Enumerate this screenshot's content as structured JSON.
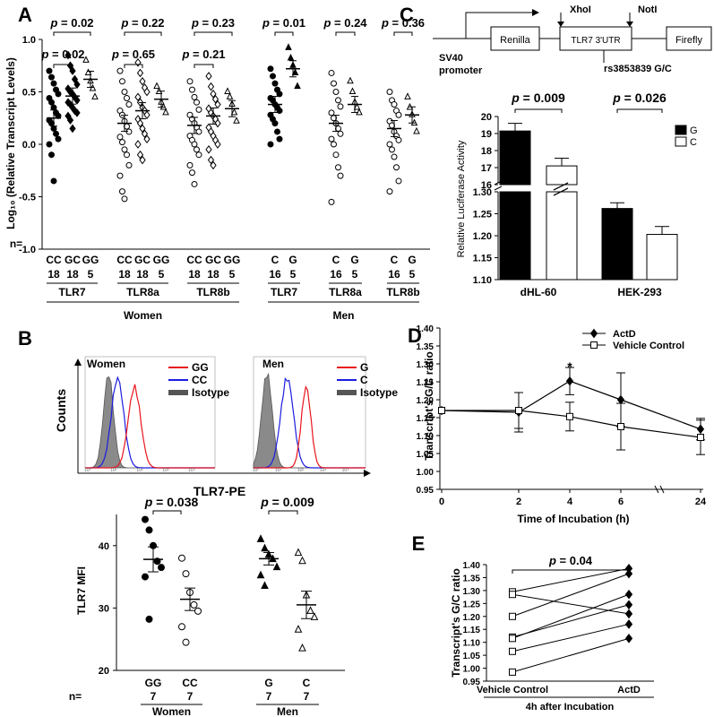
{
  "chart_data": [
    {
      "panel": "A",
      "type": "scatter",
      "ylabel": "Log₁₀ (Relative Transcript Levels)",
      "ylim": [
        -1.0,
        1.0
      ],
      "yticks": [
        "1.0",
        "0.5",
        "0.0",
        "-0.5",
        "-1.0"
      ],
      "n_label": "n=",
      "groups": [
        {
          "sex": "Women",
          "genes": [
            {
              "name": "TLR7",
              "cats": [
                "CC",
                "GC",
                "GG"
              ],
              "n": [
                "18",
                "18",
                "5"
              ],
              "means": [
                0.25,
                0.46,
                0.62
              ],
              "points": [
                [
                  0.7,
                  0.64,
                  0.58,
                  0.52,
                  0.48,
                  0.44,
                  0.4,
                  0.35,
                  0.3,
                  0.27,
                  0.23,
                  0.2,
                  0.15,
                  0.1,
                  0.05,
                  0.0,
                  -0.1,
                  -0.35
                ],
                [
                  0.85,
                  0.75,
                  0.7,
                  0.62,
                  0.57,
                  0.53,
                  0.5,
                  0.48,
                  0.45,
                  0.42,
                  0.4,
                  0.38,
                  0.35,
                  0.32,
                  0.3,
                  0.27,
                  0.23,
                  0.15
                ],
                [
                  0.8,
                  0.68,
                  0.6,
                  0.53,
                  0.45
                ]
              ]
            },
            {
              "name": "TLR8a",
              "cats": [
                "CC",
                "GC",
                "GG"
              ],
              "n": [
                "18",
                "18",
                "5"
              ],
              "means": [
                0.2,
                0.32,
                0.43
              ],
              "points": [
                [
                  0.7,
                  0.6,
                  0.5,
                  0.44,
                  0.38,
                  0.32,
                  0.28,
                  0.22,
                  0.17,
                  0.12,
                  0.07,
                  0.02,
                  -0.05,
                  -0.1,
                  -0.2,
                  -0.3,
                  -0.45,
                  -0.52
                ],
                [
                  0.78,
                  0.68,
                  0.6,
                  0.54,
                  0.5,
                  0.45,
                  0.4,
                  0.35,
                  0.32,
                  0.28,
                  0.24,
                  0.2,
                  0.15,
                  0.1,
                  0.05,
                  0.0,
                  -0.1,
                  -0.15
                ],
                [
                  0.55,
                  0.5,
                  0.4,
                  0.35,
                  0.3
                ]
              ]
            },
            {
              "name": "TLR8b",
              "cats": [
                "CC",
                "GC",
                "GG"
              ],
              "n": [
                "18",
                "18",
                "5"
              ],
              "means": [
                0.18,
                0.27,
                0.34
              ],
              "points": [
                [
                  0.6,
                  0.52,
                  0.45,
                  0.4,
                  0.33,
                  0.28,
                  0.24,
                  0.2,
                  0.16,
                  0.12,
                  0.08,
                  0.04,
                  0.0,
                  -0.05,
                  -0.1,
                  -0.2,
                  -0.27,
                  -0.38
                ],
                [
                  0.65,
                  0.55,
                  0.48,
                  0.43,
                  0.38,
                  0.34,
                  0.3,
                  0.27,
                  0.24,
                  0.2,
                  0.16,
                  0.12,
                  0.08,
                  0.04,
                  0.0,
                  -0.05,
                  -0.15,
                  -0.2
                ],
                [
                  0.5,
                  0.45,
                  0.38,
                  0.3,
                  0.22
                ]
              ]
            }
          ],
          "pvalues": [
            {
              "text": "p = 0.02",
              "tier": "top",
              "gene": 0
            },
            {
              "text": "p = 0.02",
              "tier": "low",
              "gene": 0
            },
            {
              "text": "p = 0.22",
              "tier": "top",
              "gene": 1
            },
            {
              "text": "p = 0.65",
              "tier": "low",
              "gene": 1
            },
            {
              "text": "p = 0.23",
              "tier": "top",
              "gene": 2
            },
            {
              "text": "p = 0.21",
              "tier": "low",
              "gene": 2
            }
          ]
        },
        {
          "sex": "Men",
          "genes": [
            {
              "name": "TLR7",
              "cats": [
                "C",
                "G"
              ],
              "n": [
                "16",
                "5"
              ],
              "means": [
                0.38,
                0.72
              ],
              "points": [
                [
                  0.72,
                  0.65,
                  0.58,
                  0.52,
                  0.48,
                  0.44,
                  0.42,
                  0.38,
                  0.35,
                  0.32,
                  0.28,
                  0.24,
                  0.2,
                  0.12,
                  0.05,
                  0.0
                ],
                [
                  0.92,
                  0.82,
                  0.75,
                  0.68,
                  0.55
                ]
              ]
            },
            {
              "name": "TLR8a",
              "cats": [
                "C",
                "G"
              ],
              "n": [
                "16",
                "5"
              ],
              "means": [
                0.2,
                0.38
              ],
              "points": [
                [
                  0.68,
                  0.58,
                  0.5,
                  0.42,
                  0.36,
                  0.3,
                  0.25,
                  0.2,
                  0.15,
                  0.1,
                  0.05,
                  0.0,
                  -0.1,
                  -0.22,
                  -0.3,
                  -0.55
                ],
                [
                  0.6,
                  0.5,
                  0.4,
                  0.35,
                  0.3
                ]
              ]
            },
            {
              "name": "TLR8b",
              "cats": [
                "C",
                "G"
              ],
              "n": [
                "16",
                "5"
              ],
              "means": [
                0.15,
                0.28
              ],
              "points": [
                [
                  0.5,
                  0.42,
                  0.38,
                  0.32,
                  0.28,
                  0.22,
                  0.18,
                  0.12,
                  0.08,
                  0.04,
                  0.0,
                  -0.05,
                  -0.12,
                  -0.22,
                  -0.35,
                  -0.45
                ],
                [
                  0.45,
                  0.35,
                  0.28,
                  0.2,
                  0.12
                ]
              ]
            }
          ],
          "pvalues": [
            {
              "text": "p = 0.01",
              "tier": "top",
              "gene": 0
            },
            {
              "text": "p = 0.24",
              "tier": "top",
              "gene": 1
            },
            {
              "text": "p = 0.36",
              "tier": "top",
              "gene": 2
            }
          ]
        }
      ]
    },
    {
      "panel": "B",
      "type": "histogram",
      "xlabel": "TLR7-PE",
      "ylabel": "Counts",
      "subpanels": [
        {
          "title": "Women",
          "legend": [
            {
              "label": "GG",
              "color": "#e8141c"
            },
            {
              "label": "CC",
              "color": "#1c1ce0"
            },
            {
              "label": "Isotype",
              "color": "#555555"
            }
          ]
        },
        {
          "title": "Men",
          "legend": [
            {
              "label": "G",
              "color": "#e8141c"
            },
            {
              "label": "C",
              "color": "#1c1ce0"
            },
            {
              "label": "Isotype",
              "color": "#555555"
            }
          ]
        }
      ],
      "xticks": [
        "10⁰",
        "10¹",
        "10²",
        "10³",
        "10⁴"
      ]
    },
    {
      "panel": "B-lower",
      "type": "scatter",
      "ylabel": "TLR7 MFI",
      "ylim": [
        20,
        45
      ],
      "yticks": [
        "20",
        "30",
        "40"
      ],
      "n_label": "n=",
      "groups": [
        {
          "name": "Women",
          "cats": [
            "GG",
            "CC"
          ],
          "n": [
            "7",
            "7"
          ],
          "means": [
            37.8,
            31.4
          ],
          "sem": [
            2.0,
            1.8
          ],
          "points": [
            [
              44.2,
              42.5,
              40.0,
              37.5,
              36.5,
              35.0,
              28.2
            ],
            [
              38.0,
              35.5,
              32.5,
              30.5,
              29.5,
              27.0,
              24.5
            ]
          ],
          "pvalue": "p = 0.038"
        },
        {
          "name": "Men",
          "cats": [
            "G",
            "C"
          ],
          "n": [
            "7",
            "7"
          ],
          "means": [
            37.9,
            30.5
          ],
          "sem": [
            1.0,
            2.2
          ],
          "points": [
            [
              41.0,
              39.5,
              38.5,
              37.8,
              36.5,
              35.2,
              33.5
            ],
            [
              38.8,
              37.5,
              32.0,
              29.5,
              28.5,
              26.5,
              23.5
            ]
          ],
          "pvalue": "p = 0.009"
        }
      ]
    },
    {
      "panel": "C",
      "type": "bar",
      "construct": {
        "promoter": "SV40\npromoter",
        "box1": "Renilla",
        "utr": "TLR7 3'UTR",
        "box3": "Firefly",
        "site1": "XhoI",
        "site2": "NotI",
        "snp": "rs3853839 G/C"
      },
      "ylabel": "Relative Luciferase Activity",
      "categories": [
        "dHL-60",
        "HEK-293"
      ],
      "series": [
        {
          "name": "G",
          "values": [
            19.15,
            1.262
          ],
          "err": [
            0.45,
            0.013
          ],
          "color": "#000000"
        },
        {
          "name": "C",
          "values": [
            17.1,
            1.203
          ],
          "err": [
            0.45,
            0.018
          ],
          "color": "#ffffff"
        }
      ],
      "upper_yticks": [
        "20",
        "19",
        "18",
        "17",
        "16"
      ],
      "lower_yticks": [
        "1.30",
        "1.25",
        "1.20",
        "1.15",
        "1.10"
      ],
      "pvalues": [
        "p = 0.009",
        "p = 0.026"
      ]
    },
    {
      "panel": "D",
      "type": "line",
      "xlabel": "Time of Incubation (h)",
      "ylabel": "Transcript's G/C ratio",
      "x": [
        "0",
        "2",
        "4",
        "6",
        "24"
      ],
      "ylim": [
        0.95,
        1.4
      ],
      "yticks": [
        "1.40",
        "1.35",
        "1.30",
        "1.25",
        "1.20",
        "1.15",
        "1.10",
        "1.05",
        "1.00",
        "0.95"
      ],
      "series": [
        {
          "name": "ActD",
          "values": [
            1.17,
            1.165,
            1.252,
            1.2,
            1.118
          ],
          "err": [
            0.0,
            0.055,
            0.038,
            0.075,
            0.03
          ]
        },
        {
          "name": "Vehicle Control",
          "values": [
            1.17,
            1.17,
            1.153,
            1.125,
            1.095
          ],
          "err": [
            0.0,
            0.05,
            0.04,
            0.065,
            0.048
          ]
        }
      ],
      "annotation": "*"
    },
    {
      "panel": "E",
      "type": "line",
      "ylabel": "Transcript's G/C ratio",
      "categories": [
        "Vehicle Control",
        "ActD"
      ],
      "group_label": "4h after Incubation",
      "ylim": [
        0.95,
        1.4
      ],
      "yticks": [
        "1.40",
        "1.35",
        "1.30",
        "1.25",
        "1.20",
        "1.15",
        "1.10",
        "1.05",
        "1.00",
        "0.95"
      ],
      "pairs": [
        [
          1.295,
          1.385
        ],
        [
          1.285,
          1.21
        ],
        [
          1.2,
          1.365
        ],
        [
          1.12,
          1.245
        ],
        [
          1.115,
          1.285
        ],
        [
          1.065,
          1.17
        ],
        [
          0.985,
          1.115
        ]
      ],
      "pvalue": "p = 0.04"
    }
  ]
}
